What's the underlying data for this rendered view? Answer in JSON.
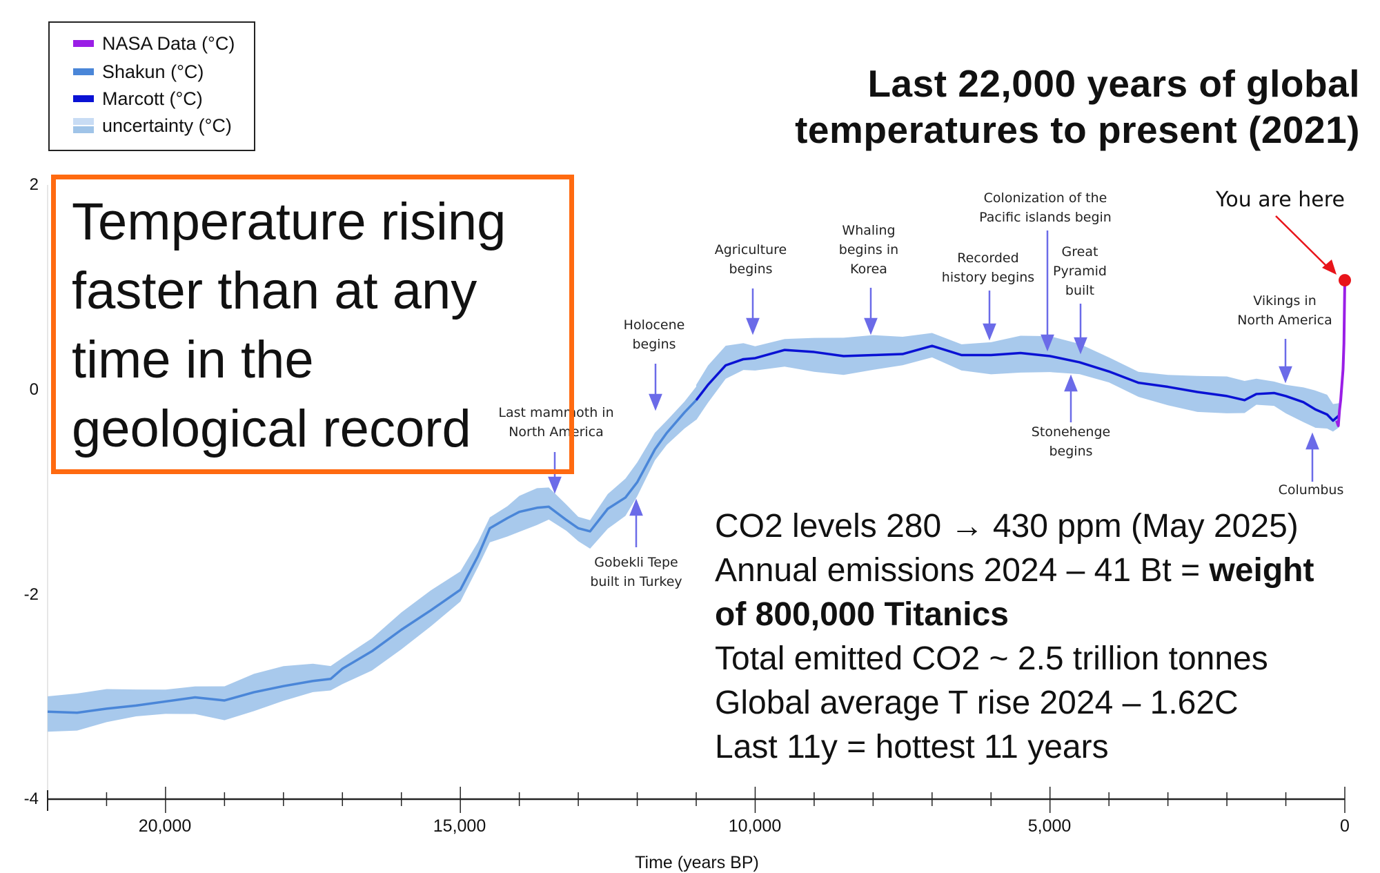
{
  "title": [
    "Last 22,000 years of global",
    "temperatures to present (2021)"
  ],
  "callout": [
    "Temperature rising",
    "faster than at any",
    "time in the",
    "geological record"
  ],
  "facts": {
    "line1": "CO2 levels 280 → 430 ppm (May 2025)",
    "line2": "Annual emissions 2024 – 41 Bt = ",
    "line2_bold": "weight",
    "line3_bold": "of 800,000 Titanics",
    "line4": "Total emitted CO2 ~ 2.5 trillion tonnes",
    "line5": "Global average T rise 2024 – 1.62C",
    "line6": "Last 11y = hottest 11 years"
  },
  "you_are_here": "You are here",
  "annotations": {
    "mammoth": [
      "Last mammoth in",
      "North America"
    ],
    "holocene": [
      "Holocene",
      "begins"
    ],
    "agriculture": [
      "Agriculture",
      "begins"
    ],
    "whaling": [
      "Whaling",
      "begins in",
      "Korea"
    ],
    "recorded": [
      "Recorded",
      "history begins"
    ],
    "pacific": [
      "Colonization of the",
      "Pacific islands begin"
    ],
    "pyramid": [
      "Great",
      "Pyramid",
      "built"
    ],
    "stonehenge": [
      "Stonehenge",
      "begins"
    ],
    "gobekli": [
      "Gobekli Tepe",
      "built in Turkey"
    ],
    "vikings": [
      "Vikings in",
      "North America"
    ],
    "columbus": [
      "Columbus"
    ]
  },
  "chart_data": {
    "type": "line",
    "xlabel": "Time (years BP)",
    "ylabel": "",
    "xlim": [
      22000,
      0
    ],
    "ylim": [
      -4,
      2
    ],
    "x_ticks": [
      20000,
      15000,
      10000,
      5000,
      0
    ],
    "x_tick_labels": [
      "20,000",
      "15,000",
      "10,000",
      "5,000",
      "0"
    ],
    "y_ticks": [
      2,
      0,
      -2,
      -4
    ],
    "y_tick_labels": [
      "2",
      "0",
      "-2",
      "-4"
    ],
    "legend_position": "top-left",
    "legend": [
      "NASA Data (°C)",
      "Shakun (°C)",
      "Marcott (°C)",
      "uncertainty (°C)"
    ],
    "colors": {
      "nasa": "#9a1ee6",
      "shakun": "#4a86d8",
      "marcott": "#0a12d4",
      "uncertainty": "#a8c9ec",
      "marker": "#e8141a",
      "arrow": "#6b6be8",
      "callout_border": "#ff6a10"
    },
    "series": [
      {
        "name": "Shakun (°C)",
        "x": [
          22000,
          21500,
          21000,
          20500,
          20000,
          19500,
          19000,
          18500,
          18000,
          17500,
          17200,
          17000,
          16500,
          16000,
          15500,
          15000,
          14700,
          14500,
          14200,
          14000,
          13700,
          13500,
          13200,
          13000,
          12800,
          12500,
          12200,
          12000,
          11700,
          11500,
          11200,
          11000
        ],
        "y": [
          -3.14,
          -3.15,
          -3.11,
          -3.08,
          -3.04,
          -3.0,
          -3.03,
          -2.95,
          -2.89,
          -2.84,
          -2.82,
          -2.72,
          -2.55,
          -2.34,
          -2.15,
          -1.95,
          -1.62,
          -1.35,
          -1.25,
          -1.19,
          -1.15,
          -1.14,
          -1.27,
          -1.35,
          -1.38,
          -1.16,
          -1.05,
          -0.9,
          -0.58,
          -0.42,
          -0.22,
          -0.1
        ]
      },
      {
        "name": "Marcott (°C)",
        "x": [
          11000,
          10800,
          10500,
          10200,
          10000,
          9500,
          9000,
          8500,
          8000,
          7500,
          7000,
          6500,
          6000,
          5500,
          5000,
          4500,
          4000,
          3500,
          3000,
          2500,
          2000,
          1700,
          1500,
          1200,
          1000,
          700,
          500,
          300,
          200,
          100
        ],
        "y": [
          -0.1,
          0.05,
          0.24,
          0.3,
          0.31,
          0.39,
          0.37,
          0.33,
          0.34,
          0.35,
          0.43,
          0.34,
          0.34,
          0.36,
          0.33,
          0.27,
          0.18,
          0.07,
          0.03,
          -0.02,
          -0.06,
          -0.1,
          -0.04,
          -0.03,
          -0.06,
          -0.12,
          -0.19,
          -0.24,
          -0.3,
          -0.25
        ]
      },
      {
        "name": "NASA Data (°C)",
        "x": [
          140,
          110,
          90,
          70,
          50,
          30,
          15,
          0
        ],
        "y": [
          -0.3,
          -0.35,
          -0.2,
          -0.1,
          0.05,
          0.2,
          0.45,
          1.07
        ]
      }
    ],
    "marker": {
      "x": 0,
      "y": 1.07,
      "label": "You are here"
    },
    "uncertainty_halfwidth": 0.15
  }
}
